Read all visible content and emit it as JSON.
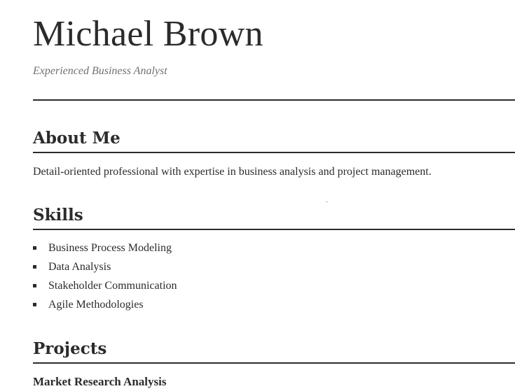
{
  "header": {
    "name": "Michael Brown",
    "tagline": "Experienced Business Analyst"
  },
  "about": {
    "title": "About Me",
    "text": "Detail-oriented professional with expertise in business analysis and project management."
  },
  "skills": {
    "title": "Skills",
    "items": [
      "Business Process Modeling",
      "Data Analysis",
      "Stakeholder Communication",
      "Agile Methodologies"
    ]
  },
  "projects": {
    "title": "Projects",
    "items": [
      {
        "title": "Market Research Analysis"
      }
    ]
  }
}
